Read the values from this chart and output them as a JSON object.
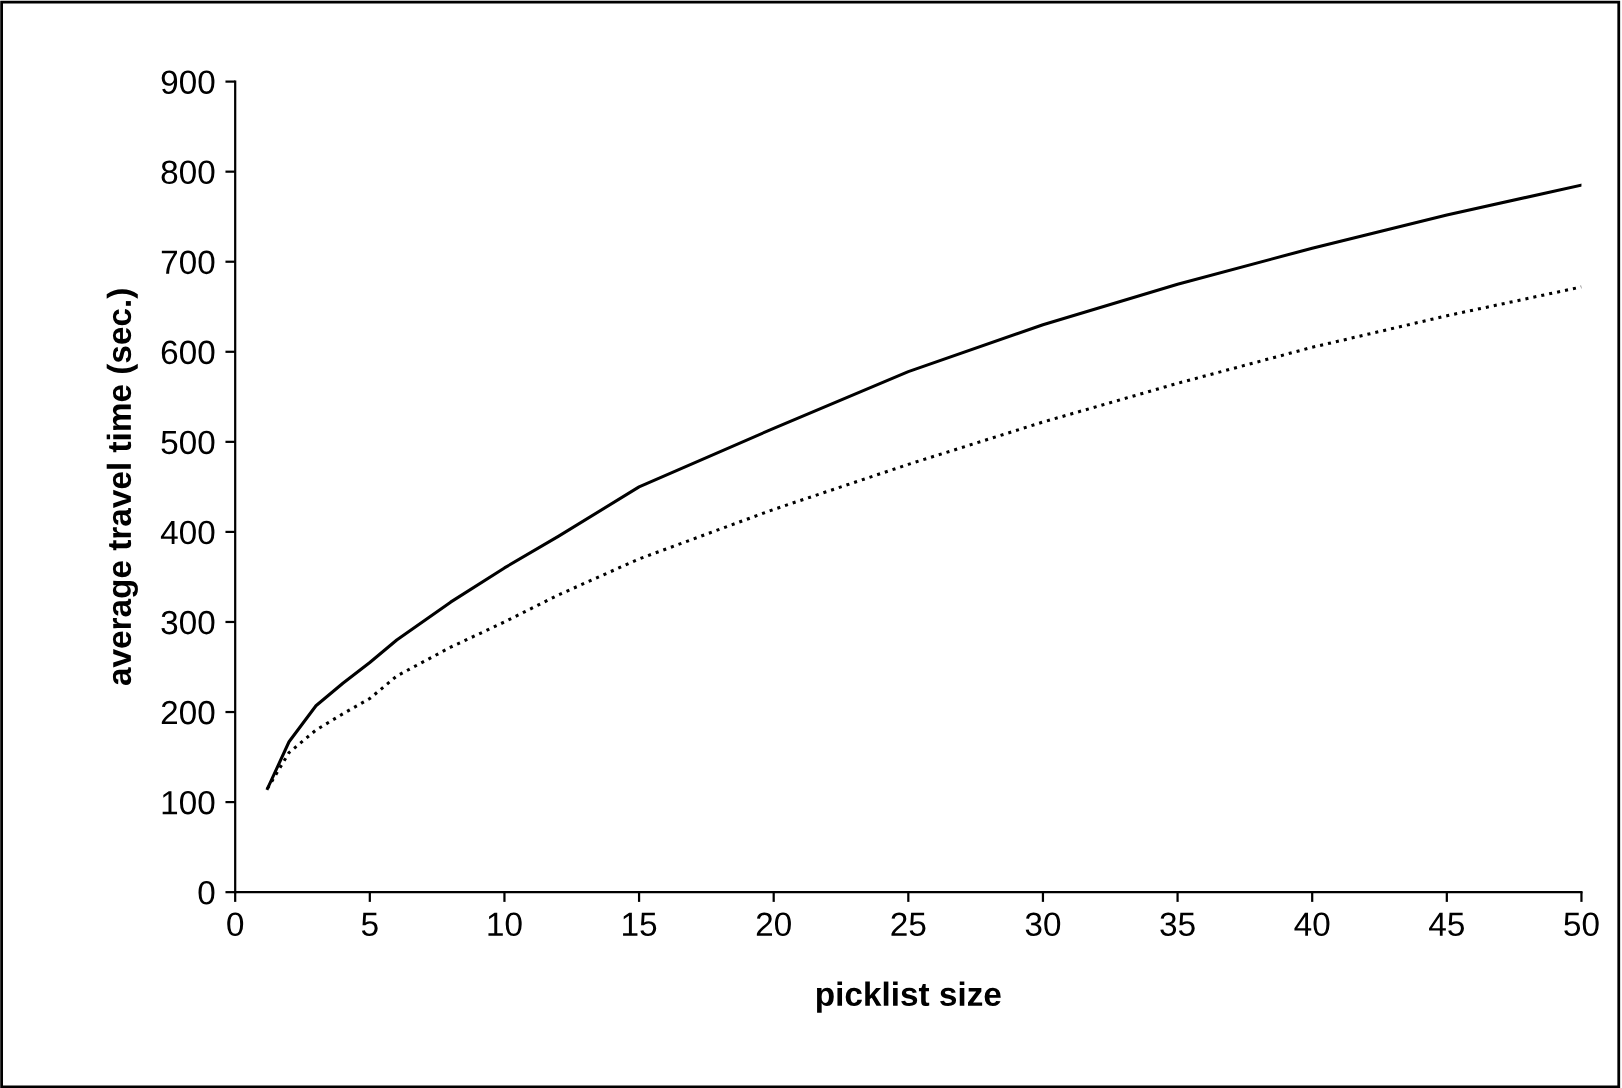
{
  "chart_data": {
    "type": "line",
    "xlabel": "picklist size",
    "ylabel": "average travel time (sec.)",
    "series": [
      {
        "color": "#000000",
        "line_style": "solid",
        "x": [
          1.2,
          2,
          3,
          4,
          5,
          6,
          8,
          10,
          12,
          15,
          20,
          25,
          30,
          35,
          40,
          45,
          50
        ],
        "values": [
          115,
          167,
          207,
          232,
          255,
          280,
          322,
          360,
          395,
          450,
          515,
          578,
          630,
          675,
          715,
          752,
          785
        ]
      },
      {
        "color": "#000000",
        "line_style": "dotted",
        "x": [
          1.2,
          2,
          3,
          4,
          5,
          6,
          8,
          10,
          12,
          15,
          20,
          25,
          30,
          35,
          40,
          45,
          50
        ],
        "values": [
          115,
          155,
          180,
          198,
          215,
          240,
          272,
          300,
          330,
          370,
          425,
          475,
          522,
          565,
          605,
          640,
          672
        ]
      }
    ],
    "xlim": [
      0,
      50
    ],
    "ylim": [
      0,
      900
    ],
    "xticks": [
      0,
      5,
      10,
      15,
      20,
      25,
      30,
      35,
      40,
      45,
      50
    ],
    "yticks": [
      0,
      100,
      200,
      300,
      400,
      500,
      600,
      700,
      800,
      900
    ],
    "grid": false,
    "legend": false,
    "marker": "none"
  }
}
